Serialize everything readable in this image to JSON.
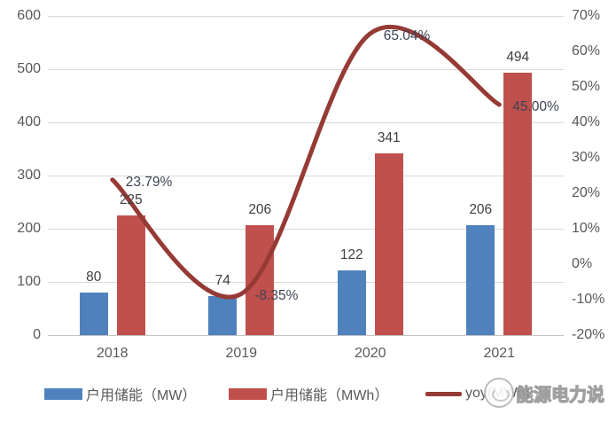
{
  "watermark": {
    "text": "能源电力说"
  },
  "legend": {
    "items": [
      {
        "label": "户用储能（MW）",
        "color": "#4F81BD",
        "type": "bar"
      },
      {
        "label": "户用储能（MWh）",
        "color": "#C0504D",
        "type": "bar"
      },
      {
        "label": "yoy(MWh)",
        "color": "#963A35",
        "type": "line"
      }
    ]
  },
  "chart_data": {
    "type": "bar",
    "subtype": "grouped-bars-with-smooth-line",
    "title": "",
    "categories": [
      "2018",
      "2019",
      "2020",
      "2021"
    ],
    "series": [
      {
        "name": "户用储能（MW）",
        "type": "bar",
        "axis": "left",
        "color": "#4F81BD",
        "values": [
          80,
          74,
          122,
          206
        ],
        "labels": [
          "80",
          "74",
          "122",
          "206"
        ]
      },
      {
        "name": "户用储能（MWh）",
        "type": "bar",
        "axis": "left",
        "color": "#C0504D",
        "values": [
          225,
          206,
          341,
          494
        ],
        "labels": [
          "225",
          "206",
          "341",
          "494"
        ]
      },
      {
        "name": "yoy(MWh)",
        "type": "line",
        "axis": "right",
        "color": "#963A35",
        "smooth": true,
        "values": [
          23.79,
          -8.35,
          65.04,
          45.0
        ],
        "labels": [
          "23.79%",
          "-8.35%",
          "65.04%",
          "45.00%"
        ]
      }
    ],
    "left_axis": {
      "min": 0,
      "max": 600,
      "step": 100,
      "ticks": [
        "600",
        "500",
        "400",
        "300",
        "200",
        "100",
        "0"
      ]
    },
    "right_axis": {
      "min": -20,
      "max": 70,
      "step": 10,
      "ticks": [
        "70%",
        "60%",
        "50%",
        "40%",
        "30%",
        "20%",
        "10%",
        "0%",
        "-10%",
        "-20%"
      ]
    },
    "grid": true,
    "legend_position": "bottom",
    "colors": {
      "gridline": "#d9d9d9",
      "axis_line": "#c3c3c3",
      "tick_label": "#595959",
      "data_label": "#404040"
    }
  }
}
